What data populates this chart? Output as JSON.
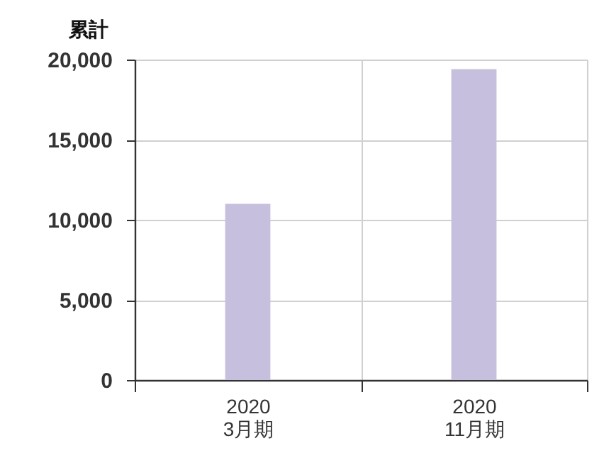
{
  "chart_data": {
    "type": "bar",
    "ylabel": "累計",
    "categories": [
      "2020\n3月期",
      "2020\n11月期"
    ],
    "values": [
      11000,
      19400
    ],
    "color": "#c6c0de",
    "ylim": [
      0,
      20000
    ],
    "yticks": [
      0,
      {
        "value": 5000,
        "label": "5,000"
      },
      {
        "value": 10000,
        "label": "10,000"
      },
      {
        "value": 15000,
        "label": "15,000"
      },
      {
        "value": 20000,
        "label": "20,000"
      }
    ],
    "grid": true
  }
}
